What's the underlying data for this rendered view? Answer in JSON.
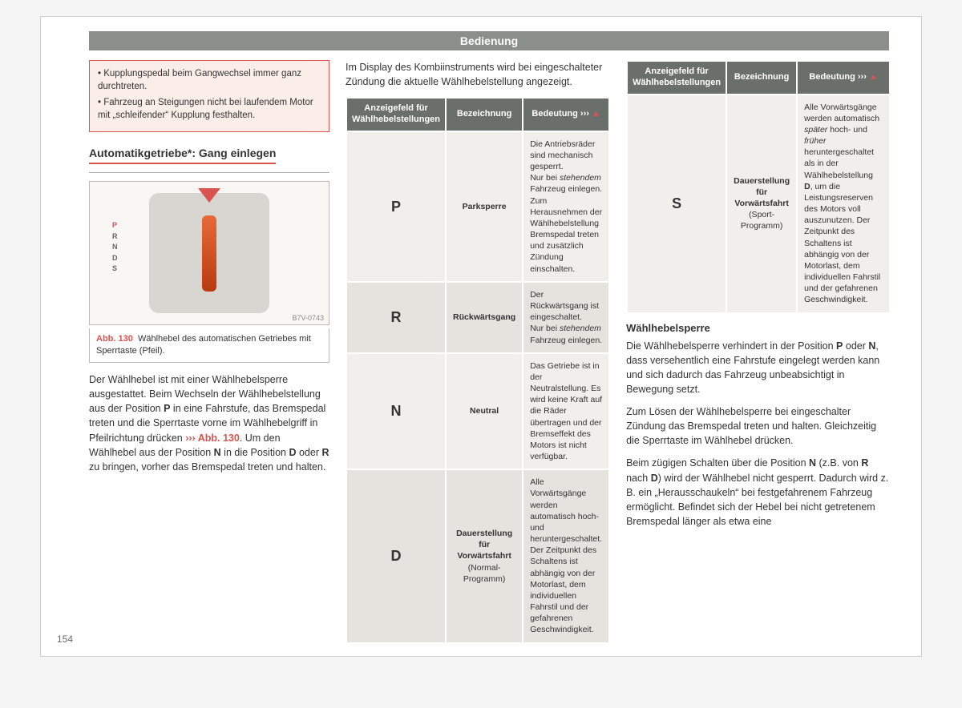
{
  "header": "Bedienung",
  "pageNumber": "154",
  "colors": {
    "accent": "#d9534f",
    "headerBg": "#8a8f8c",
    "tableHeaderBg": "#6b6f6c",
    "rowLight": "#f0efeb",
    "rowDark": "#e4e3dd",
    "warnBg": "#fbeee9"
  },
  "warning": {
    "items": [
      "Kupplungspedal beim Gangwechsel immer ganz durchtreten.",
      "Fahrzeug an Steigungen nicht bei laufendem Motor mit „schleifender“ Kupplung festhalten."
    ]
  },
  "sectionTitle": "Automatikgetriebe*: Gang einlegen",
  "figure": {
    "code": "B7V-0743",
    "refLabel": "Abb. 130",
    "caption": "Wählhebel des automatischen Getriebes mit Sperrtaste (Pfeil).",
    "gearLetters": [
      "P",
      "R",
      "N",
      "D",
      "S"
    ]
  },
  "leftBody": "Der Wählhebel ist mit einer Wählhebelsperre ausgestattet. Beim Wechseln der Wählhebelstellung aus der Position <b>P</b> in eine Fahrstufe, das Bremspedal treten und die Sperrtaste vorne im Wählhebelgriff in Pfeilrichtung drücken <span class='ref-link'><span class='chev'>›››</span> Abb. 130</span>. Um den Wählhebel aus der Position <b>N</b> in die Position <b>D</b> oder <b>R</b> zu bringen, vorher das Bremspedal treten und halten.",
  "midIntro": "Im Display des Kombiinstruments wird bei eingeschalteter Zündung die aktuelle Wählhebelstellung angezeigt.",
  "tableHeaders": {
    "c1": "Anzeigefeld für Wählhebelstellungen",
    "c2": "Bezeichnung",
    "c3": "Bedeutung ›››",
    "warnIcon": "▲"
  },
  "gearTableMid": [
    {
      "code": "P",
      "label": "Parksperre",
      "desc": "Die Antriebsräder sind mechanisch gesperrt.<br>Nur bei <em>stehendem</em> Fahrzeug einlegen. Zum Herausnehmen der Wählhebelstellung Bremspedal treten und zusätzlich Zündung einschalten.",
      "row": "light"
    },
    {
      "code": "R",
      "label": "Rückwärtsgang",
      "desc": "Der Rückwärtsgang ist eingeschaltet.<br>Nur bei <em>stehendem</em> Fahrzeug einlegen.",
      "row": "dark"
    },
    {
      "code": "N",
      "label": "Neutral",
      "desc": "Das Getriebe ist in der Neutralstellung. Es wird keine Kraft auf die Räder übertragen und der Bremseffekt des Motors ist nicht verfügbar.",
      "row": "light"
    },
    {
      "code": "D",
      "label": "Dauerstellung für Vorwärtsfahrt",
      "labelSub": " (Normal-Programm)",
      "desc": "Alle Vorwärtsgänge werden automatisch hoch- und heruntergeschaltet. Der Zeitpunkt des Schaltens ist abhängig von der Motorlast, dem individuellen Fahrstil und der gefahrenen Geschwindigkeit.",
      "row": "dark"
    }
  ],
  "gearTableRight": [
    {
      "code": "S",
      "label": "Dauerstellung für Vorwärtsfahrt",
      "labelSub": " (Sport-Programm)",
      "desc": "Alle Vorwärtsgänge werden automatisch <em>später</em> hoch- und <em>früher</em> heruntergeschaltet als in der Wählhebelstellung <b>D</b>, um die Leistungsreserven des Motors voll auszunutzen. Der Zeitpunkt des Schaltens ist abhängig von der Motorlast, dem individuellen Fahrstil und der gefahrenen Geschwindigkeit.",
      "row": "light"
    }
  ],
  "rightSection": {
    "heading": "Wählhebelsperre",
    "p1": "Die Wählhebelsperre verhindert in der Position <b>P</b> oder <b>N</b>, dass versehentlich eine Fahrstufe eingelegt werden kann und sich dadurch das Fahrzeug unbeabsichtigt in Bewegung setzt.",
    "p2": "Zum Lösen der Wählhebelsperre bei eingeschalter Zündung das Bremspedal treten und halten. Gleichzeitig die Sperrtaste im Wählhebel drücken.",
    "p3": "Beim zügigen Schalten über die Position <b>N</b> (z.B. von <b>R</b> nach <b>D</b>) wird der Wählhebel nicht gesperrt. Dadurch wird z. B. ein „Herausschaukeln“ bei festgefahrenem Fahrzeug ermöglicht. Befindet sich der Hebel bei nicht getretenem Bremspedal länger als etwa eine"
  }
}
